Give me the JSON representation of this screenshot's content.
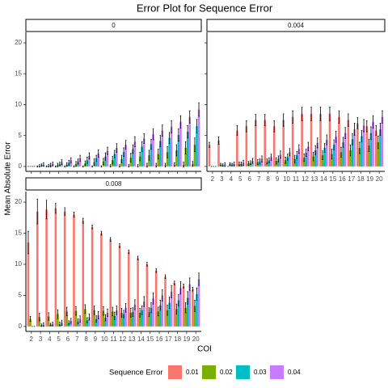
{
  "title": "Error Plot for Sequence Error",
  "x_label": "COI",
  "y_label": "Mean Absolute Error",
  "legend_title": "Sequence Error",
  "chart_data": [
    {
      "type": "bar",
      "title": "0",
      "categories": [
        2,
        3,
        4,
        5,
        6,
        7,
        8,
        9,
        10,
        11,
        12,
        13,
        14,
        15,
        16,
        17,
        18,
        19,
        20
      ],
      "ylim": [
        -0.8,
        21.7
      ],
      "yticks": [
        0,
        5,
        10,
        15,
        20
      ],
      "series": [
        {
          "name": "0.01",
          "color": "#F8766D",
          "values": [
            0,
            0,
            0,
            0,
            0,
            0,
            0,
            0,
            0,
            0.1,
            0.1,
            0.1,
            0.1,
            0.2,
            0.2,
            0.2,
            0.3,
            0.3,
            0.4
          ],
          "errors": [
            0,
            0.1,
            0.1,
            0.1,
            0.1,
            0.1,
            0.1,
            0.1,
            0.1,
            0.2,
            0.2,
            0.2,
            0.2,
            0.3,
            0.3,
            0.3,
            0.3,
            0.4,
            0.4
          ]
        },
        {
          "name": "0.02",
          "color": "#7CAE00",
          "values": [
            0,
            0.1,
            0.1,
            0.2,
            0.3,
            0.4,
            0.5,
            0.7,
            0.8,
            1,
            1.2,
            1.4,
            1.6,
            1.8,
            2,
            2.3,
            2.6,
            3,
            3.5
          ],
          "errors": [
            0,
            0.2,
            0.2,
            0.3,
            0.3,
            0.4,
            0.4,
            0.5,
            0.5,
            0.6,
            0.6,
            0.7,
            0.7,
            0.8,
            0.8,
            0.9,
            0.9,
            1,
            1.1
          ]
        },
        {
          "name": "0.03",
          "color": "#00BFC4",
          "values": [
            0,
            0.2,
            0.2,
            0.4,
            0.6,
            0.8,
            1,
            1.3,
            1.6,
            2,
            2.3,
            2.8,
            3.2,
            3.6,
            4.1,
            4.6,
            5.1,
            5.6,
            6.5
          ],
          "errors": [
            0,
            0.2,
            0.3,
            0.3,
            0.4,
            0.4,
            0.5,
            0.5,
            0.6,
            0.6,
            0.7,
            0.7,
            0.8,
            0.8,
            0.9,
            0.9,
            1,
            1,
            1.1
          ]
        },
        {
          "name": "0.04",
          "color": "#C77CFF",
          "values": [
            0,
            0.3,
            0.4,
            0.7,
            1,
            1.3,
            1.7,
            2.1,
            2.5,
            3,
            3.5,
            4,
            4.5,
            5.2,
            5.8,
            6.4,
            7.2,
            8,
            9.2
          ],
          "errors": [
            0,
            0.3,
            0.3,
            0.4,
            0.4,
            0.5,
            0.5,
            0.6,
            0.6,
            0.7,
            0.7,
            0.8,
            0.8,
            0.9,
            0.9,
            1,
            1,
            1,
            1.1
          ]
        }
      ]
    },
    {
      "type": "bar",
      "title": "0.004",
      "categories": [
        2,
        3,
        4,
        5,
        6,
        7,
        8,
        9,
        10,
        11,
        12,
        13,
        14,
        15,
        16,
        17,
        18,
        19,
        20
      ],
      "ylim": [
        -0.8,
        21.7
      ],
      "yticks": [
        0,
        5,
        10,
        15,
        20
      ],
      "series": [
        {
          "name": "0.01",
          "color": "#F8766D",
          "values": [
            3.5,
            4.2,
            0,
            5.8,
            6.5,
            7.5,
            7.5,
            6.5,
            7.5,
            8,
            8.5,
            8.5,
            8.5,
            8.5,
            8,
            7.5,
            7,
            6.5,
            5.8
          ],
          "errors": [
            0.4,
            0.6,
            0,
            0.8,
            0.9,
            0.9,
            0.9,
            0.9,
            1,
            1,
            1.1,
            1.1,
            1.1,
            1.1,
            1,
            1,
            0.9,
            0.9,
            0.8
          ]
        },
        {
          "name": "0.02",
          "color": "#7CAE00",
          "values": [
            0,
            0.3,
            0.4,
            0.4,
            0.5,
            0.7,
            0.8,
            0.9,
            1,
            1.2,
            1.4,
            1.6,
            1.8,
            2,
            2.3,
            2.6,
            3,
            3.4,
            3.9
          ],
          "errors": [
            0,
            0.2,
            0.2,
            0.3,
            0.3,
            0.4,
            0.4,
            0.5,
            0.5,
            0.6,
            0.6,
            0.7,
            0.7,
            0.8,
            0.8,
            0.9,
            0.9,
            1,
            1
          ]
        },
        {
          "name": "0.03",
          "color": "#00BFC4",
          "values": [
            0,
            0.2,
            0.3,
            0.4,
            0.6,
            0.8,
            1,
            1.2,
            1.5,
            1.8,
            2.2,
            2.6,
            3,
            3.5,
            3.9,
            4.4,
            4.9,
            5.4,
            6
          ],
          "errors": [
            0,
            0.2,
            0.2,
            0.3,
            0.3,
            0.4,
            0.4,
            0.5,
            0.5,
            0.6,
            0.6,
            0.7,
            0.7,
            0.8,
            0.8,
            0.9,
            0.9,
            1,
            1
          ]
        },
        {
          "name": "0.04",
          "color": "#C77CFF",
          "values": [
            0,
            0.3,
            0.4,
            0.6,
            0.9,
            1.2,
            1.5,
            1.9,
            2.3,
            2.8,
            3.2,
            3.8,
            4.3,
            4.8,
            5.4,
            6,
            6.6,
            7.2,
            8
          ],
          "errors": [
            0,
            0.3,
            0.3,
            0.4,
            0.4,
            0.5,
            0.5,
            0.6,
            0.6,
            0.7,
            0.7,
            0.8,
            0.8,
            0.9,
            0.9,
            1,
            1,
            1,
            1
          ]
        }
      ]
    },
    {
      "type": "bar",
      "title": "0.008",
      "categories": [
        2,
        3,
        4,
        5,
        6,
        7,
        8,
        9,
        10,
        11,
        12,
        13,
        14,
        15,
        16,
        17,
        18,
        19,
        20
      ],
      "ylim": [
        -0.8,
        21.7
      ],
      "yticks": [
        0,
        5,
        10,
        15,
        20
      ],
      "series": [
        {
          "name": "0.01",
          "color": "#F8766D",
          "values": [
            13.5,
            18.5,
            18.8,
            19,
            18.5,
            18,
            17,
            16,
            15,
            14,
            13,
            12,
            11,
            10,
            9,
            8,
            7,
            6.5,
            6
          ],
          "errors": [
            1.8,
            2,
            1.5,
            0.8,
            0.6,
            0.4,
            0.4,
            0.3,
            0.3,
            0.3,
            0.3,
            0.3,
            0.3,
            0.3,
            0.3,
            0.3,
            0.3,
            0.3,
            0.3
          ]
        },
        {
          "name": "0.02",
          "color": "#7CAE00",
          "values": [
            1.2,
            1.5,
            1.6,
            2,
            2.4,
            2.5,
            2.8,
            2.6,
            2.5,
            2.4,
            2.2,
            2.2,
            2.2,
            2.3,
            2.4,
            2.6,
            2.8,
            3,
            3.3
          ],
          "errors": [
            0.4,
            0.6,
            0.6,
            0.7,
            0.7,
            0.7,
            0.7,
            0.7,
            0.7,
            0.7,
            0.7,
            0.7,
            0.7,
            0.7,
            0.7,
            0.8,
            0.8,
            0.8,
            0.9
          ]
        },
        {
          "name": "0.03",
          "color": "#00BFC4",
          "values": [
            0,
            0.2,
            0.3,
            0.4,
            0.6,
            0.8,
            1,
            1.2,
            1.4,
            1.7,
            2,
            2.3,
            2.6,
            3,
            3.4,
            3.8,
            4.2,
            4.6,
            5.2
          ],
          "errors": [
            0,
            0.2,
            0.2,
            0.3,
            0.3,
            0.4,
            0.4,
            0.5,
            0.5,
            0.6,
            0.6,
            0.7,
            0.7,
            0.8,
            0.8,
            0.9,
            0.9,
            1,
            1
          ]
        },
        {
          "name": "0.04",
          "color": "#C77CFF",
          "values": [
            0,
            0.3,
            0.4,
            0.6,
            0.9,
            1.2,
            1.5,
            1.8,
            2.2,
            2.6,
            3,
            3.5,
            4,
            4.5,
            5,
            5.6,
            6.2,
            6.8,
            7.6
          ],
          "errors": [
            0,
            0.3,
            0.3,
            0.4,
            0.4,
            0.5,
            0.5,
            0.6,
            0.6,
            0.7,
            0.7,
            0.8,
            0.8,
            0.9,
            0.9,
            1,
            1,
            1,
            1
          ]
        }
      ]
    }
  ]
}
